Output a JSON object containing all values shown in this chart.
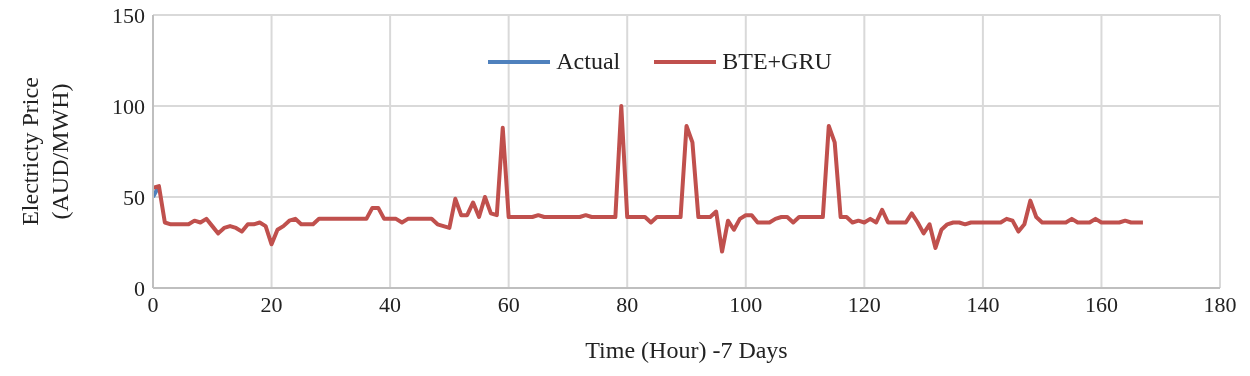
{
  "chart_data": {
    "type": "line",
    "xlabel": "Time (Hour) -7 Days",
    "ylabel": "Electricty Price (AUD/MWH)",
    "x": [
      0,
      1,
      2,
      3,
      4,
      5,
      6,
      7,
      8,
      9,
      10,
      11,
      12,
      13,
      14,
      15,
      16,
      17,
      18,
      19,
      20,
      21,
      22,
      23,
      24,
      25,
      26,
      27,
      28,
      29,
      30,
      31,
      32,
      33,
      34,
      35,
      36,
      37,
      38,
      39,
      40,
      41,
      42,
      43,
      44,
      45,
      46,
      47,
      48,
      49,
      50,
      51,
      52,
      53,
      54,
      55,
      56,
      57,
      58,
      59,
      60,
      61,
      62,
      63,
      64,
      65,
      66,
      67,
      68,
      69,
      70,
      71,
      72,
      73,
      74,
      75,
      76,
      77,
      78,
      79,
      80,
      81,
      82,
      83,
      84,
      85,
      86,
      87,
      88,
      89,
      90,
      91,
      92,
      93,
      94,
      95,
      96,
      97,
      98,
      99,
      100,
      101,
      102,
      103,
      104,
      105,
      106,
      107,
      108,
      109,
      110,
      111,
      112,
      113,
      114,
      115,
      116,
      117,
      118,
      119,
      120,
      121,
      122,
      123,
      124,
      125,
      126,
      127,
      128,
      129,
      130,
      131,
      132,
      133,
      134,
      135,
      136,
      137,
      138,
      139,
      140,
      141,
      142,
      143,
      144,
      145,
      146,
      147,
      148,
      149,
      150,
      151,
      152,
      153,
      154,
      155,
      156,
      157,
      158,
      159,
      160,
      161,
      162,
      163,
      164,
      165,
      166,
      167
    ],
    "series": [
      {
        "name": "Actual",
        "color": "#4f81bd",
        "values": [
          50,
          56,
          null,
          null,
          null,
          null,
          null,
          null,
          null,
          null,
          null,
          null,
          null,
          null,
          null,
          null,
          null,
          null,
          null,
          null,
          null,
          null,
          null,
          null,
          null,
          null,
          null,
          null,
          null,
          null,
          null,
          null,
          null,
          null,
          null,
          null,
          null,
          null,
          null,
          null,
          null,
          null,
          null,
          null,
          null,
          null,
          null,
          null,
          null,
          null,
          null,
          null,
          null,
          null,
          null,
          null,
          null,
          null,
          null,
          null,
          null,
          null,
          null,
          null,
          null,
          null,
          null,
          null,
          null,
          null,
          null,
          null,
          null,
          null,
          null,
          null,
          null,
          null,
          null,
          null,
          null,
          null,
          null,
          null,
          null,
          null,
          null,
          null,
          null,
          null,
          null,
          null,
          null,
          null,
          null,
          null,
          null,
          null,
          null,
          null,
          null,
          null,
          null,
          null,
          null,
          null,
          null,
          null,
          null,
          null,
          null,
          null,
          null,
          null,
          null,
          null,
          null,
          null,
          null,
          null,
          null,
          null,
          null,
          null,
          null,
          null,
          null,
          null,
          null,
          null,
          null,
          null,
          null,
          null,
          null,
          null,
          null,
          null,
          null,
          null,
          null,
          null,
          null,
          null,
          null,
          null,
          null,
          null,
          null,
          null,
          null,
          null,
          null,
          null,
          null,
          null,
          null,
          null,
          null,
          null,
          null,
          null,
          null,
          null,
          null,
          null,
          null,
          null
        ]
      },
      {
        "name": "BTE+GRU",
        "color": "#c0504d",
        "values": [
          55,
          56,
          36,
          35,
          35,
          35,
          35,
          37,
          36,
          38,
          34,
          30,
          33,
          34,
          33,
          31,
          35,
          35,
          36,
          34,
          24,
          32,
          34,
          37,
          38,
          35,
          35,
          35,
          38,
          38,
          38,
          38,
          38,
          38,
          38,
          38,
          38,
          44,
          44,
          38,
          38,
          38,
          36,
          38,
          38,
          38,
          38,
          38,
          35,
          34,
          33,
          49,
          40,
          40,
          47,
          39,
          50,
          41,
          40,
          88,
          39,
          39,
          39,
          39,
          39,
          40,
          39,
          39,
          39,
          39,
          39,
          39,
          39,
          40,
          39,
          39,
          39,
          39,
          39,
          100,
          39,
          39,
          39,
          39,
          36,
          39,
          39,
          39,
          39,
          39,
          89,
          80,
          39,
          39,
          39,
          42,
          20,
          37,
          32,
          38,
          40,
          40,
          36,
          36,
          36,
          38,
          39,
          39,
          36,
          39,
          39,
          39,
          39,
          39,
          89,
          80,
          39,
          39,
          36,
          37,
          36,
          38,
          36,
          43,
          36,
          36,
          36,
          36,
          41,
          36,
          30,
          35,
          22,
          32,
          35,
          36,
          36,
          35,
          36,
          36,
          36,
          36,
          36,
          36,
          38,
          37,
          31,
          35,
          48,
          39,
          36,
          36,
          36,
          36,
          36,
          38,
          36,
          36,
          36,
          38,
          36,
          36,
          36,
          36,
          37,
          36,
          36,
          36
        ]
      }
    ],
    "xlim": [
      0,
      180
    ],
    "xticks": [
      0,
      20,
      40,
      60,
      80,
      100,
      120,
      140,
      160,
      180
    ],
    "ylim": [
      0,
      150
    ],
    "yticks": [
      0,
      50,
      100,
      150
    ],
    "grid": true,
    "legend": "top",
    "marker": "none",
    "line_style": "solid"
  }
}
